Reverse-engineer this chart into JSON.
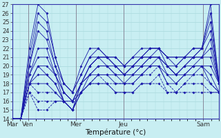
{
  "xlabel": "Température (°c)",
  "ylim": [
    14,
    27
  ],
  "yticks": [
    14,
    15,
    16,
    17,
    18,
    19,
    20,
    21,
    22,
    23,
    24,
    25,
    26,
    27
  ],
  "xtick_labels": [
    "Mar",
    "Ven",
    "Mer",
    "Jeu",
    "Sam"
  ],
  "xtick_positions": [
    0,
    8,
    32,
    56,
    96
  ],
  "xlim": [
    0,
    104
  ],
  "bg_color": "#c8eef2",
  "grid_color": "#a8d8dc",
  "line_color": "#1a1aaa",
  "series": [
    [
      14,
      14,
      22,
      27,
      26,
      21,
      18,
      17,
      20,
      22,
      22,
      21,
      21,
      20,
      21,
      22,
      22,
      22,
      21,
      21,
      21,
      21,
      22,
      27,
      18
    ],
    [
      14,
      14,
      21,
      26,
      25,
      21,
      18,
      17,
      19,
      21,
      22,
      21,
      21,
      20,
      21,
      21,
      22,
      22,
      21,
      21,
      21,
      21,
      22,
      26,
      18
    ],
    [
      14,
      14,
      20,
      25,
      24,
      20,
      18,
      17,
      19,
      21,
      21,
      21,
      20,
      20,
      20,
      21,
      22,
      22,
      21,
      20,
      21,
      22,
      22,
      25,
      18
    ],
    [
      14,
      14,
      20,
      24,
      23,
      20,
      17,
      16,
      18,
      20,
      21,
      21,
      20,
      19,
      20,
      21,
      21,
      22,
      20,
      20,
      21,
      22,
      22,
      24,
      18
    ],
    [
      14,
      14,
      19,
      22,
      22,
      19,
      17,
      16,
      18,
      20,
      21,
      21,
      20,
      19,
      20,
      21,
      21,
      21,
      20,
      19,
      20,
      21,
      21,
      23,
      18
    ],
    [
      14,
      14,
      19,
      21,
      21,
      19,
      17,
      16,
      18,
      20,
      21,
      20,
      20,
      19,
      20,
      20,
      21,
      21,
      20,
      19,
      20,
      21,
      21,
      22,
      18
    ],
    [
      14,
      14,
      18,
      20,
      20,
      19,
      16,
      15,
      18,
      19,
      20,
      20,
      19,
      19,
      19,
      20,
      21,
      21,
      20,
      19,
      20,
      20,
      21,
      21,
      18
    ],
    [
      14,
      14,
      18,
      20,
      19,
      18,
      16,
      15,
      18,
      19,
      20,
      20,
      19,
      19,
      19,
      20,
      20,
      21,
      19,
      19,
      19,
      20,
      20,
      20,
      18
    ],
    [
      14,
      14,
      18,
      19,
      19,
      18,
      16,
      15,
      17,
      19,
      19,
      19,
      19,
      18,
      19,
      19,
      20,
      20,
      19,
      18,
      19,
      20,
      20,
      19,
      17
    ],
    [
      14,
      14,
      18,
      18,
      18,
      17,
      16,
      15,
      17,
      18,
      19,
      19,
      18,
      18,
      18,
      19,
      20,
      20,
      18,
      18,
      19,
      19,
      20,
      18,
      17
    ],
    [
      14,
      14,
      18,
      17,
      17,
      17,
      16,
      15,
      17,
      18,
      19,
      18,
      18,
      18,
      18,
      19,
      19,
      20,
      18,
      17,
      18,
      19,
      19,
      18,
      17
    ],
    [
      14,
      14,
      17,
      16,
      16,
      16,
      16,
      16,
      17,
      18,
      18,
      18,
      17,
      17,
      17,
      18,
      18,
      19,
      17,
      17,
      18,
      18,
      18,
      17,
      17
    ],
    [
      14,
      14,
      17,
      15,
      15,
      16,
      16,
      16,
      17,
      18,
      18,
      18,
      17,
      17,
      17,
      18,
      18,
      18,
      17,
      17,
      17,
      17,
      17,
      17,
      17
    ]
  ],
  "dashed_indices": [
    10,
    11,
    12
  ]
}
